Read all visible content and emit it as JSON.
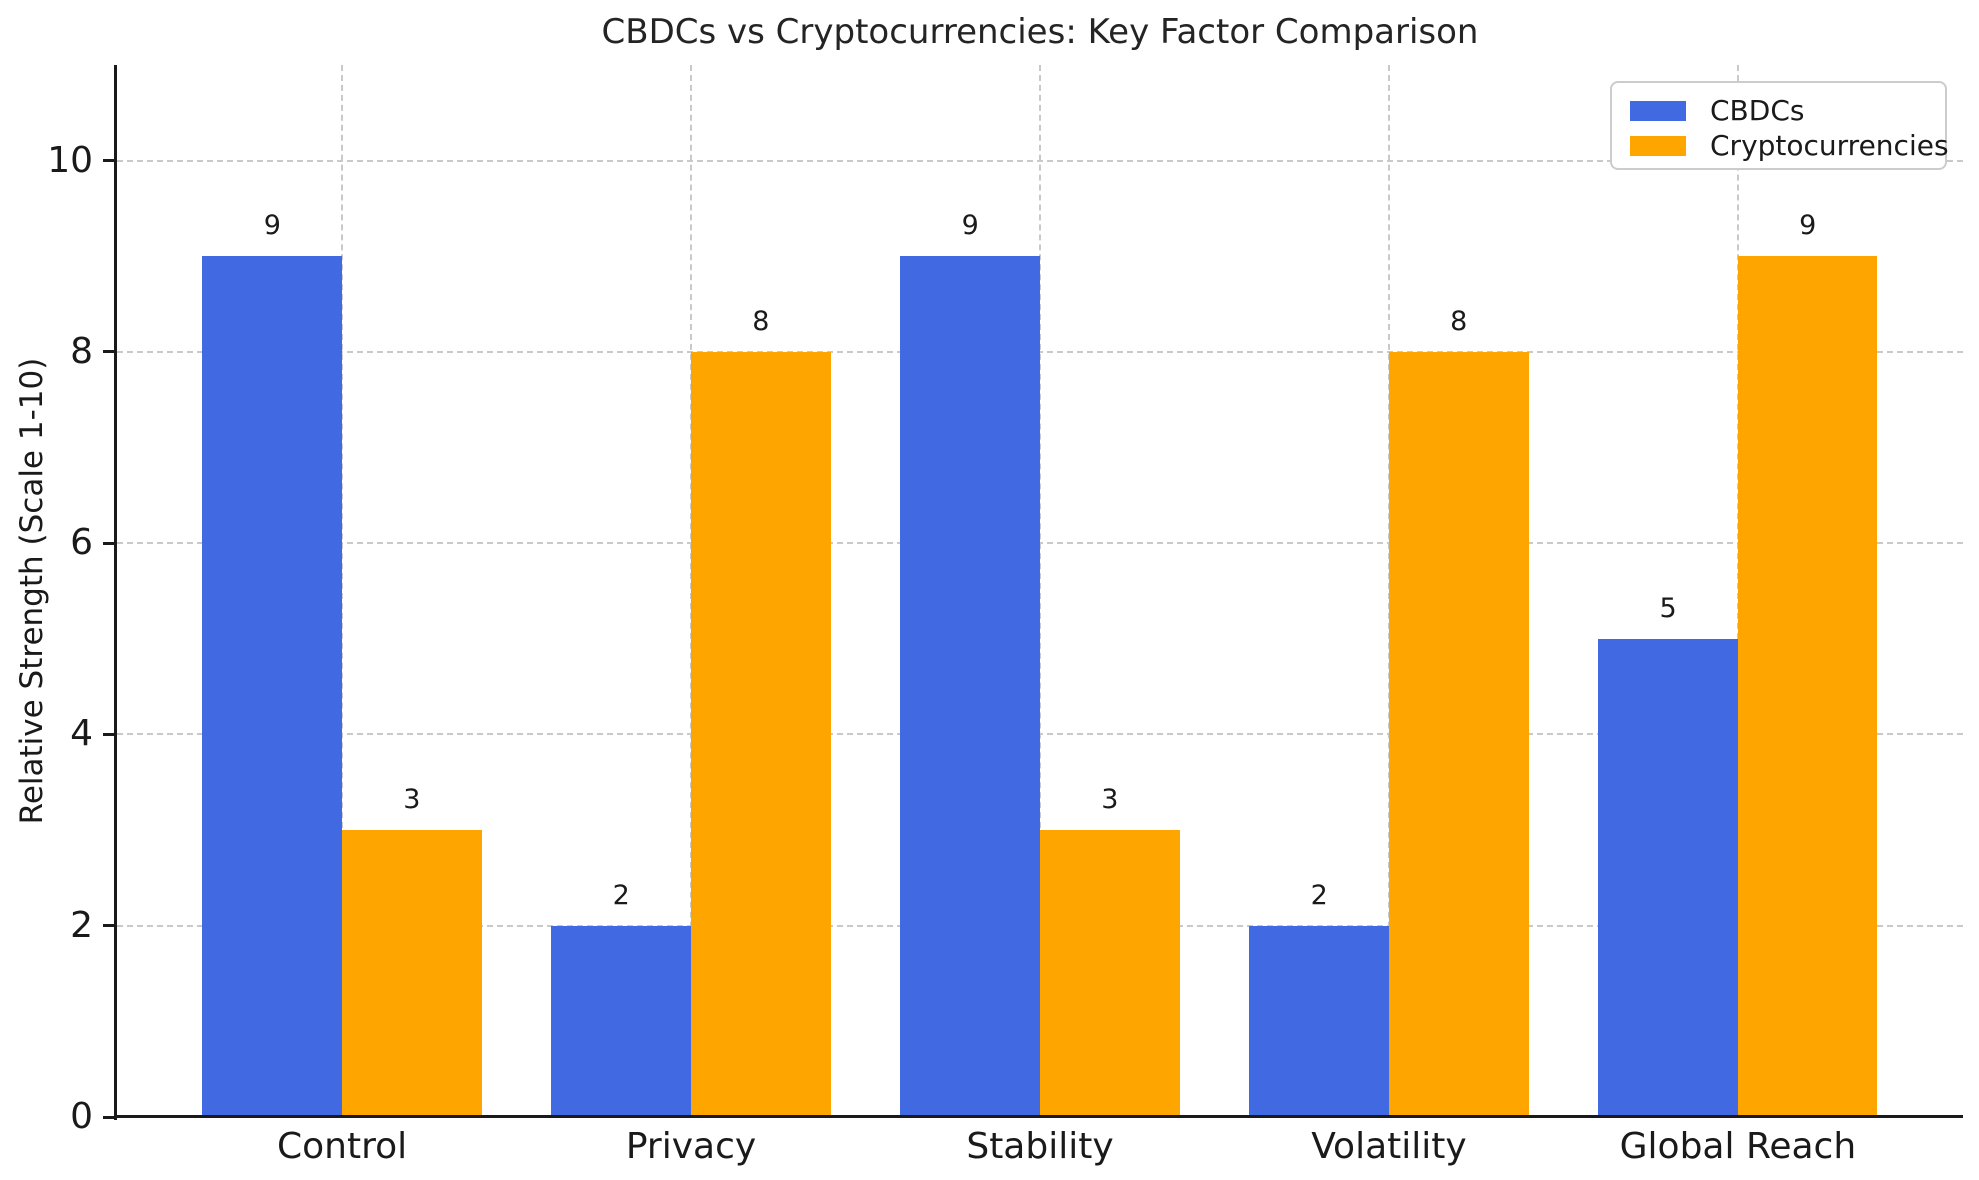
{
  "title": "CBDCs vs Cryptocurrencies: Key Factor Comparison",
  "colors": {
    "background": "#ffffff",
    "grid": "#c9c9c9",
    "spine": "#1a1a1a",
    "text": "#1a1a1a",
    "legend_border": "#cccccc"
  },
  "chart_data": {
    "type": "bar",
    "title": "CBDCs vs Cryptocurrencies: Key Factor Comparison",
    "xlabel": "",
    "ylabel": "Relative Strength (Scale 1-10)",
    "categories": [
      "Control",
      "Privacy",
      "Stability",
      "Volatility",
      "Global Reach"
    ],
    "series": [
      {
        "name": "CBDCs",
        "color": "#4169E1",
        "values": [
          9,
          2,
          9,
          2,
          5
        ]
      },
      {
        "name": "Cryptocurrencies",
        "color": "#FFA500",
        "values": [
          3,
          8,
          3,
          8,
          9
        ]
      }
    ],
    "ylim": [
      0,
      11
    ],
    "yticks": [
      0,
      2,
      4,
      6,
      8,
      10
    ],
    "grid": true,
    "grid_style": "dashed",
    "bar_value_labels": true,
    "legend_position": "upper right"
  }
}
